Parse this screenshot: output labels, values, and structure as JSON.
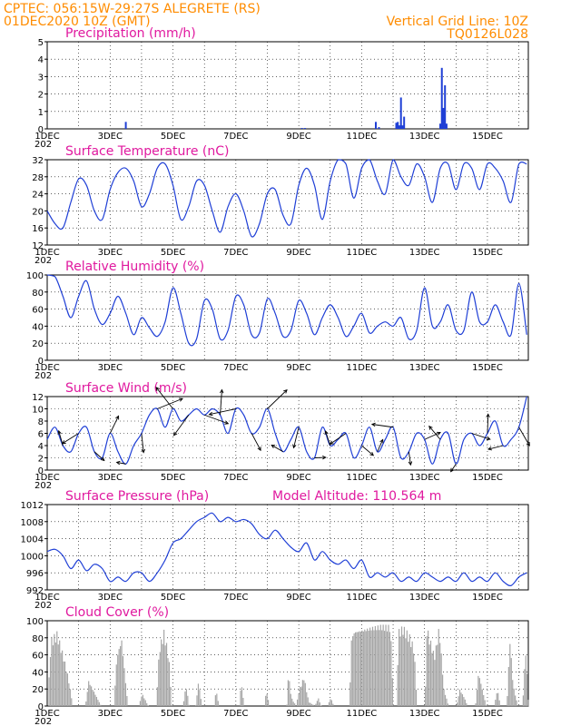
{
  "header": {
    "line1_left": "CPTEC:",
    "line1_coords": "056:15W-29:27S",
    "line1_station": "ALEGRETE (RS)",
    "line2_left": "01DEC2020 10Z (GMT)",
    "line2_right": "Vertical Grid Line: 10Z",
    "line3_right": "TQ0126L028"
  },
  "x_axis_labels": [
    "1DEC",
    "3DEC",
    "5DEC",
    "7DEC",
    "9DEC",
    "11DEC",
    "13DEC",
    "15DEC"
  ],
  "x_axis_year_fragment": "202",
  "colors": {
    "header": "#ff8c00",
    "title": "#e0199f",
    "series": "#1f3fd6",
    "cloud": "#a6a6a6"
  },
  "chart_data": [
    {
      "type": "bar",
      "title": "Precipitation (mm/h)",
      "ylim": [
        0,
        5
      ],
      "yticks": [
        "0",
        "1",
        "2",
        "3",
        "4",
        "5"
      ],
      "x_unit": "days since 01DEC2020 10Z",
      "grid": true,
      "bars": [
        {
          "x": 2.5,
          "y": 0.4
        },
        {
          "x": 8.1,
          "y": 0.05
        },
        {
          "x": 8.2,
          "y": 0.05
        },
        {
          "x": 10.45,
          "y": 0.4
        },
        {
          "x": 10.55,
          "y": 0.1
        },
        {
          "x": 11.1,
          "y": 0.35
        },
        {
          "x": 11.15,
          "y": 0.4
        },
        {
          "x": 11.2,
          "y": 0.2
        },
        {
          "x": 11.25,
          "y": 1.8
        },
        {
          "x": 11.3,
          "y": 0.2
        },
        {
          "x": 11.35,
          "y": 0.7
        },
        {
          "x": 12.5,
          "y": 0.3
        },
        {
          "x": 12.55,
          "y": 3.5
        },
        {
          "x": 12.6,
          "y": 1.2
        },
        {
          "x": 12.65,
          "y": 2.5
        },
        {
          "x": 12.7,
          "y": 0.3
        }
      ]
    },
    {
      "type": "line",
      "title": "Surface Temperature (nC)",
      "ylim": [
        12,
        32
      ],
      "yticks": [
        "12",
        "16",
        "20",
        "24",
        "28",
        "32"
      ],
      "grid": true,
      "series": [
        {
          "name": "Temperature",
          "x": [
            0,
            0.25,
            0.5,
            0.75,
            1,
            1.25,
            1.5,
            1.75,
            2,
            2.25,
            2.5,
            2.75,
            3,
            3.25,
            3.5,
            3.75,
            4,
            4.25,
            4.5,
            4.75,
            5,
            5.25,
            5.5,
            5.75,
            6,
            6.25,
            6.5,
            6.75,
            7,
            7.25,
            7.5,
            7.75,
            8,
            8.25,
            8.5,
            8.75,
            9,
            9.25,
            9.5,
            9.75,
            10,
            10.25,
            10.5,
            10.75,
            11,
            11.25,
            11.5,
            11.75,
            12,
            12.25,
            12.5,
            12.75,
            13,
            13.25,
            13.5,
            13.75,
            14,
            14.25,
            14.5,
            14.75,
            15,
            15.25
          ],
          "y": [
            20,
            17,
            16,
            22,
            27.5,
            26,
            20,
            18,
            25,
            29,
            30,
            27,
            21,
            24,
            30,
            31,
            26,
            18,
            21,
            27,
            26,
            20,
            15,
            21,
            24,
            20,
            14,
            17,
            24,
            25,
            19,
            17,
            26,
            30,
            26,
            18,
            27,
            32,
            31,
            23,
            30,
            32,
            27,
            24,
            32,
            28,
            26,
            31,
            28,
            22,
            30,
            31,
            25,
            31,
            30,
            25,
            31,
            30,
            27,
            22,
            31,
            31
          ]
        }
      ]
    },
    {
      "type": "line",
      "title": "Relative Humidity (%)",
      "ylim": [
        0,
        100
      ],
      "yticks": [
        "0",
        "20",
        "40",
        "60",
        "80",
        "100"
      ],
      "grid": true,
      "series": [
        {
          "name": "Relative Humidity",
          "x": [
            0,
            0.25,
            0.5,
            0.75,
            1,
            1.25,
            1.5,
            1.75,
            2,
            2.25,
            2.5,
            2.75,
            3,
            3.25,
            3.5,
            3.75,
            4,
            4.25,
            4.5,
            4.75,
            5,
            5.25,
            5.5,
            5.75,
            6,
            6.25,
            6.5,
            6.75,
            7,
            7.25,
            7.5,
            7.75,
            8,
            8.25,
            8.5,
            8.75,
            9,
            9.25,
            9.5,
            9.75,
            10,
            10.25,
            10.5,
            10.75,
            11,
            11.25,
            11.5,
            11.75,
            12,
            12.25,
            12.5,
            12.75,
            13,
            13.25,
            13.5,
            13.75,
            14,
            14.25,
            14.5,
            14.75,
            15,
            15.25
          ],
          "y": [
            100,
            98,
            75,
            50,
            75,
            93,
            60,
            42,
            55,
            75,
            55,
            30,
            50,
            38,
            28,
            45,
            85,
            55,
            20,
            25,
            70,
            60,
            25,
            35,
            75,
            65,
            30,
            32,
            72,
            55,
            28,
            35,
            70,
            55,
            30,
            50,
            65,
            50,
            28,
            40,
            55,
            32,
            40,
            45,
            40,
            50,
            25,
            35,
            85,
            40,
            45,
            65,
            35,
            35,
            80,
            45,
            45,
            65,
            45,
            30,
            90,
            30
          ]
        }
      ]
    },
    {
      "type": "line",
      "title": "Surface Wind (m/s)",
      "ylim": [
        0,
        12
      ],
      "yticks": [
        "0",
        "2",
        "4",
        "6",
        "8",
        "10",
        "12"
      ],
      "grid": true,
      "series": [
        {
          "name": "Wind speed",
          "x": [
            0,
            0.25,
            0.5,
            0.75,
            1,
            1.25,
            1.5,
            1.75,
            2,
            2.25,
            2.5,
            2.75,
            3,
            3.25,
            3.5,
            3.75,
            4,
            4.25,
            4.5,
            4.75,
            5,
            5.25,
            5.5,
            5.75,
            6,
            6.25,
            6.5,
            6.75,
            7,
            7.25,
            7.5,
            7.75,
            8,
            8.25,
            8.5,
            8.75,
            9,
            9.25,
            9.5,
            9.75,
            10,
            10.25,
            10.5,
            10.75,
            11,
            11.25,
            11.5,
            11.75,
            12,
            12.25,
            12.5,
            12.75,
            13,
            13.25,
            13.5,
            13.75,
            14,
            14.25,
            14.5,
            14.75,
            15,
            15.25
          ],
          "y": [
            5,
            7,
            4,
            3,
            6,
            7,
            3,
            2,
            6,
            3,
            1,
            4,
            6,
            9,
            10,
            7,
            10,
            8,
            9,
            10,
            9,
            10,
            9,
            6,
            10,
            9,
            6,
            7,
            10,
            6,
            3,
            5,
            7,
            3,
            2,
            7,
            4,
            5,
            6,
            2,
            4,
            7,
            3,
            5,
            7,
            2,
            3,
            6,
            5,
            1,
            5,
            6,
            1,
            5,
            6,
            4,
            6,
            8,
            4,
            5,
            7,
            12
          ]
        }
      ],
      "arrows_note": "wind direction vectors drawn along series"
    },
    {
      "type": "line",
      "title": "Surface Pressure (hPa)",
      "annotation": "Model Altitude: 110.564 m",
      "ylim": [
        992,
        1012
      ],
      "yticks": [
        "992",
        "996",
        "1000",
        "1004",
        "1008",
        "1012"
      ],
      "grid": true,
      "series": [
        {
          "name": "Pressure",
          "x": [
            0,
            0.25,
            0.5,
            0.75,
            1,
            1.25,
            1.5,
            1.75,
            2,
            2.25,
            2.5,
            2.75,
            3,
            3.25,
            3.5,
            3.75,
            4,
            4.25,
            4.5,
            4.75,
            5,
            5.25,
            5.5,
            5.75,
            6,
            6.25,
            6.5,
            6.75,
            7,
            7.25,
            7.5,
            7.75,
            8,
            8.25,
            8.5,
            8.75,
            9,
            9.25,
            9.5,
            9.75,
            10,
            10.25,
            10.5,
            10.75,
            11,
            11.25,
            11.5,
            11.75,
            12,
            12.25,
            12.5,
            12.75,
            13,
            13.25,
            13.5,
            13.75,
            14,
            14.25,
            14.5,
            14.75,
            15,
            15.25
          ],
          "y": [
            1001,
            1001.5,
            1000,
            997,
            999,
            996.5,
            998,
            997,
            994,
            995,
            994,
            996,
            996,
            994,
            996,
            999,
            1003,
            1004,
            1006,
            1008,
            1009,
            1010,
            1008,
            1009,
            1008,
            1008.5,
            1007.5,
            1005,
            1004,
            1006,
            1004,
            1002,
            1001,
            1003,
            999,
            1001,
            999,
            998,
            999,
            997,
            999,
            995,
            996,
            995,
            996,
            994,
            995,
            994,
            996,
            995,
            994,
            995,
            994,
            996,
            994,
            995,
            994,
            996,
            994,
            993,
            995,
            996
          ]
        }
      ]
    },
    {
      "type": "bar",
      "title": "Cloud Cover (%)",
      "ylim": [
        0,
        100
      ],
      "yticks": [
        "0",
        "20",
        "40",
        "60",
        "80",
        "100"
      ],
      "grid": true,
      "bars_mode": "dense",
      "profile": [
        {
          "x": 0.0,
          "y": 0
        },
        {
          "x": 0.1,
          "y": 80
        },
        {
          "x": 0.3,
          "y": 88
        },
        {
          "x": 0.5,
          "y": 60
        },
        {
          "x": 0.65,
          "y": 35
        },
        {
          "x": 0.8,
          "y": 0
        },
        {
          "x": 1.2,
          "y": 0
        },
        {
          "x": 1.3,
          "y": 30
        },
        {
          "x": 1.5,
          "y": 15
        },
        {
          "x": 1.7,
          "y": 0
        },
        {
          "x": 2.1,
          "y": 0
        },
        {
          "x": 2.2,
          "y": 60
        },
        {
          "x": 2.35,
          "y": 80
        },
        {
          "x": 2.55,
          "y": 0
        },
        {
          "x": 2.9,
          "y": 0
        },
        {
          "x": 3.0,
          "y": 15
        },
        {
          "x": 3.2,
          "y": 0
        },
        {
          "x": 3.45,
          "y": 0
        },
        {
          "x": 3.55,
          "y": 70
        },
        {
          "x": 3.7,
          "y": 90
        },
        {
          "x": 3.85,
          "y": 60
        },
        {
          "x": 3.95,
          "y": 0
        },
        {
          "x": 4.3,
          "y": 0
        },
        {
          "x": 4.4,
          "y": 25
        },
        {
          "x": 4.5,
          "y": 0
        },
        {
          "x": 4.7,
          "y": 0
        },
        {
          "x": 4.8,
          "y": 30
        },
        {
          "x": 4.9,
          "y": 0
        },
        {
          "x": 5.3,
          "y": 0
        },
        {
          "x": 5.35,
          "y": 20
        },
        {
          "x": 5.45,
          "y": 0
        },
        {
          "x": 6.1,
          "y": 0
        },
        {
          "x": 6.15,
          "y": 30
        },
        {
          "x": 6.25,
          "y": 0
        },
        {
          "x": 6.9,
          "y": 0
        },
        {
          "x": 6.95,
          "y": 20
        },
        {
          "x": 7.05,
          "y": 0
        },
        {
          "x": 7.6,
          "y": 0
        },
        {
          "x": 7.65,
          "y": 40
        },
        {
          "x": 7.75,
          "y": 10
        },
        {
          "x": 7.9,
          "y": 0
        },
        {
          "x": 8.0,
          "y": 20
        },
        {
          "x": 8.15,
          "y": 35
        },
        {
          "x": 8.3,
          "y": 5
        },
        {
          "x": 8.5,
          "y": 0
        },
        {
          "x": 8.6,
          "y": 10
        },
        {
          "x": 8.7,
          "y": 0
        },
        {
          "x": 8.9,
          "y": 0
        },
        {
          "x": 9.0,
          "y": 10
        },
        {
          "x": 9.1,
          "y": 0
        },
        {
          "x": 9.6,
          "y": 0
        },
        {
          "x": 9.65,
          "y": 80
        },
        {
          "x": 9.75,
          "y": 90
        },
        {
          "x": 10.0,
          "y": 92
        },
        {
          "x": 10.3,
          "y": 95
        },
        {
          "x": 10.6,
          "y": 97
        },
        {
          "x": 10.9,
          "y": 96
        },
        {
          "x": 11.0,
          "y": 0
        },
        {
          "x": 11.1,
          "y": 0
        },
        {
          "x": 11.15,
          "y": 90
        },
        {
          "x": 11.3,
          "y": 95
        },
        {
          "x": 11.5,
          "y": 85
        },
        {
          "x": 11.65,
          "y": 70
        },
        {
          "x": 11.75,
          "y": 0
        },
        {
          "x": 12.0,
          "y": 0
        },
        {
          "x": 12.05,
          "y": 95
        },
        {
          "x": 12.3,
          "y": 60
        },
        {
          "x": 12.45,
          "y": 95
        },
        {
          "x": 12.6,
          "y": 20
        },
        {
          "x": 12.75,
          "y": 0
        },
        {
          "x": 13.0,
          "y": 0
        },
        {
          "x": 13.1,
          "y": 20
        },
        {
          "x": 13.25,
          "y": 10
        },
        {
          "x": 13.35,
          "y": 0
        },
        {
          "x": 13.6,
          "y": 0
        },
        {
          "x": 13.7,
          "y": 40
        },
        {
          "x": 13.85,
          "y": 15
        },
        {
          "x": 13.95,
          "y": 0
        },
        {
          "x": 14.2,
          "y": 0
        },
        {
          "x": 14.3,
          "y": 20
        },
        {
          "x": 14.4,
          "y": 0
        },
        {
          "x": 14.6,
          "y": 0
        },
        {
          "x": 14.7,
          "y": 80
        },
        {
          "x": 14.8,
          "y": 25
        },
        {
          "x": 14.95,
          "y": 0
        },
        {
          "x": 15.1,
          "y": 0
        },
        {
          "x": 15.2,
          "y": 70
        },
        {
          "x": 15.3,
          "y": 0
        }
      ]
    }
  ]
}
